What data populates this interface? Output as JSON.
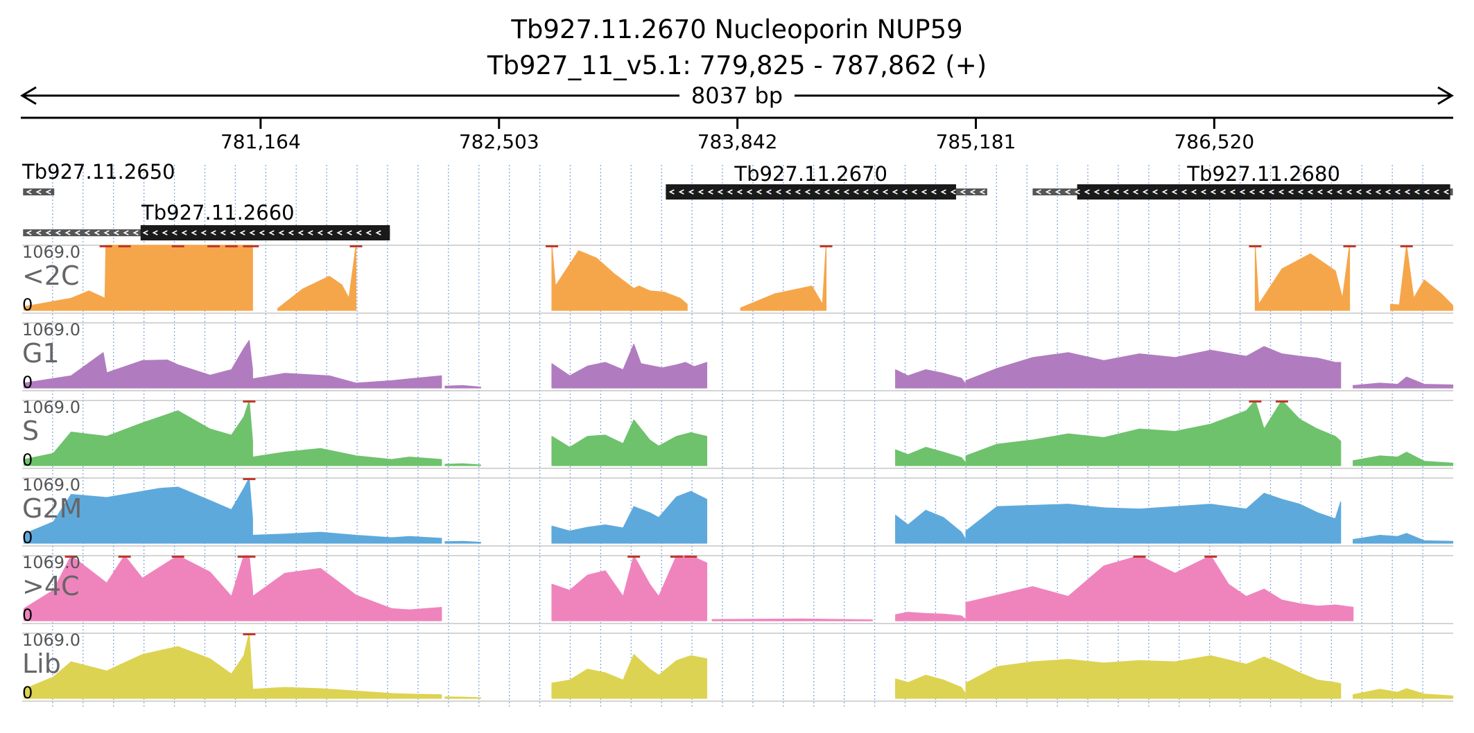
{
  "header": {
    "title": "Tb927.11.2670  Nucleoporin NUP59",
    "subtitle": "Tb927_11_v5.1: 779,825 - 787,862 (+)",
    "span_label": "8037 bp"
  },
  "colors": {
    "<2C": "#f5a64b",
    "G1": "#b07cbf",
    "S": "#6ec26c",
    "G2M": "#5ea9dc",
    ">4C": "#ef84bd",
    "Lib": "#ddd352",
    "gene": "#1a1a1a",
    "utr": "#555555",
    "grid": "#7fa8e0",
    "clip": "#c0392b"
  },
  "chart_data": {
    "type": "area",
    "title": "Tb927.11.2670  Nucleoporin NUP59",
    "subtitle": "Tb927_11_v5.1: 779,825 - 787,862 (+)",
    "xlim": [
      779825,
      787862
    ],
    "x_ticks": [
      781164,
      782503,
      783842,
      785181,
      786520
    ],
    "x_tick_labels": [
      "781,164",
      "782,503",
      "783,842",
      "785,181",
      "786,520"
    ],
    "genes": [
      {
        "name": "Tb927.11.2650",
        "strand": "-",
        "row": 0,
        "cds": null,
        "transcript": [
          779830,
          780005
        ]
      },
      {
        "name": "Tb927.11.2660",
        "strand": "-",
        "row": 1,
        "cds": [
          780490,
          781890
        ],
        "transcript": [
          779830,
          781890
        ]
      },
      {
        "name": "Tb927.11.2670",
        "strand": "-",
        "row": 0,
        "cds": [
          783440,
          785070
        ],
        "transcript": [
          783440,
          785245
        ]
      },
      {
        "name": "Tb927.11.2680",
        "strand": "-",
        "row": 0,
        "cds": [
          785750,
          787845
        ],
        "transcript": [
          785500,
          787860
        ]
      }
    ],
    "ymax_label": "1069.0",
    "ymin_label": "0",
    "ylim": [
      0,
      1069.0
    ],
    "series": [
      {
        "name": "<2C",
        "segments": [
          {
            "x": [
              779835,
              780100,
              780200,
              780290,
              780295,
              780400,
              780700,
              780900,
              781000,
              781100,
              781119
            ],
            "y": [
              60,
              200,
              320,
              200,
              1069,
              1069,
              1069,
              1069,
              1069,
              1069,
              1069
            ]
          },
          {
            "x": [
              781260,
              781400,
              781550,
              781620,
              781660,
              781700
            ],
            "y": [
              30,
              350,
              560,
              420,
              200,
              1069
            ]
          },
          {
            "x": [
              782800,
              782820,
              782950,
              783050,
              783150,
              783260,
              783290,
              783350,
              783430,
              783520,
              783560
            ],
            "y": [
              1069,
              400,
              980,
              860,
              600,
              360,
              400,
              320,
              300,
              200,
              100
            ]
          },
          {
            "x": [
              783860,
              784050,
              784260,
              784320,
              784340
            ],
            "y": [
              40,
              270,
              400,
              100,
              1069
            ]
          },
          {
            "x": [
              786750,
              786770,
              786900,
              787060,
              787200,
              787240,
              787280
            ],
            "y": [
              1069,
              100,
              680,
              930,
              650,
              200,
              1069
            ]
          },
          {
            "x": [
              787510,
              787560,
              787600,
              787640,
              787700,
              787800,
              787860
            ],
            "y": [
              100,
              90,
              1069,
              200,
              500,
              260,
              80
            ]
          }
        ]
      },
      {
        "name": "G1",
        "segments": [
          {
            "x": [
              779835,
              780100,
              780280,
              780300,
              780500,
              780640,
              780700,
              780880,
              781000,
              781070,
              781100,
              781119
            ],
            "y": [
              80,
              200,
              580,
              250,
              450,
              460,
              380,
              210,
              300,
              650,
              780,
              300
            ]
          },
          {
            "x": [
              781119,
              781300,
              781550,
              781700,
              781900,
              782000,
              782180
            ],
            "y": [
              150,
              240,
              200,
              80,
              120,
              150,
              200
            ]
          },
          {
            "x": [
              782200,
              782300,
              782400
            ],
            "y": [
              30,
              40,
              15
            ]
          },
          {
            "x": [
              782800,
              782900,
              783000,
              783100,
              783200,
              783260,
              783300,
              783420,
              783500,
              783550,
              783600,
              783670
            ],
            "y": [
              400,
              200,
              360,
              420,
              300,
              720,
              400,
              330,
              380,
              420,
              350,
              420
            ]
          },
          {
            "x": [
              784730,
              784800,
              784900,
              785000,
              785100,
              785120
            ],
            "y": [
              300,
              200,
              300,
              240,
              160,
              80
            ]
          },
          {
            "x": [
              785125,
              785300,
              785500,
              785700,
              785900,
              786100,
              786300,
              786500,
              786700,
              786800,
              786900,
              787000,
              787100,
              787200,
              787230
            ],
            "y": [
              120,
              320,
              500,
              580,
              450,
              560,
              500,
              620,
              520,
              680,
              560,
              520,
              490,
              420,
              420
            ]
          },
          {
            "x": [
              787300,
              787450,
              787550,
              787600,
              787700,
              787860
            ],
            "y": [
              40,
              80,
              60,
              180,
              60,
              50
            ]
          }
        ]
      },
      {
        "name": "S",
        "segments": [
          {
            "x": [
              779835,
              780000,
              780100,
              780300,
              780500,
              780600,
              780700,
              780880,
              781000,
              781070,
              781100,
              781119
            ],
            "y": [
              100,
              200,
              550,
              480,
              700,
              800,
              900,
              600,
              500,
              800,
              1069,
              400
            ]
          },
          {
            "x": [
              781119,
              781300,
              781500,
              781700,
              781900,
              782000,
              782180
            ],
            "y": [
              140,
              220,
              280,
              160,
              100,
              140,
              100
            ]
          },
          {
            "x": [
              782200,
              782300,
              782400
            ],
            "y": [
              20,
              30,
              10
            ]
          },
          {
            "x": [
              782800,
              782900,
              783000,
              783100,
              783200,
              783260,
              783350,
              783400,
              783500,
              783580,
              783670
            ],
            "y": [
              480,
              300,
              480,
              500,
              360,
              750,
              420,
              320,
              480,
              540,
              480
            ]
          },
          {
            "x": [
              784730,
              784800,
              784900,
              785000,
              785100,
              785120
            ],
            "y": [
              260,
              180,
              300,
              220,
              130,
              60
            ]
          },
          {
            "x": [
              785125,
              785300,
              785500,
              785700,
              785900,
              786100,
              786300,
              786500,
              786700,
              786750,
              786800,
              786900,
              787000,
              787100,
              787200,
              787230
            ],
            "y": [
              160,
              350,
              420,
              520,
              460,
              600,
              560,
              680,
              900,
              1069,
              600,
              1069,
              760,
              600,
              480,
              400
            ]
          },
          {
            "x": [
              787300,
              787450,
              787550,
              787600,
              787700,
              787860
            ],
            "y": [
              80,
              160,
              140,
              220,
              70,
              40
            ]
          }
        ]
      },
      {
        "name": "G2M",
        "segments": [
          {
            "x": [
              779835,
              780000,
              780100,
              780300,
              780500,
              780600,
              780700,
              780880,
              781000,
              781070,
              781100,
              781119
            ],
            "y": [
              150,
              350,
              800,
              750,
              850,
              900,
              920,
              700,
              550,
              900,
              1069,
              400
            ]
          },
          {
            "x": [
              781119,
              781300,
              781500,
              781700,
              781900,
              782000,
              782180
            ],
            "y": [
              130,
              150,
              180,
              130,
              90,
              110,
              80
            ]
          },
          {
            "x": [
              782200,
              782300,
              782400
            ],
            "y": [
              25,
              30,
              15
            ]
          },
          {
            "x": [
              782800,
              782900,
              783000,
              783100,
              783200,
              783260,
              783350,
              783400,
              783500,
              783580,
              783670
            ],
            "y": [
              280,
              200,
              260,
              300,
              250,
              600,
              500,
              420,
              760,
              850,
              720
            ]
          },
          {
            "x": [
              784730,
              784800,
              784900,
              785000,
              785100,
              785120
            ],
            "y": [
              460,
              300,
              540,
              420,
              180,
              80
            ]
          },
          {
            "x": [
              785125,
              785300,
              785500,
              785700,
              785900,
              786100,
              786300,
              786500,
              786700,
              786800,
              786900,
              787000,
              787100,
              787200,
              787230
            ],
            "y": [
              200,
              600,
              620,
              640,
              580,
              560,
              600,
              640,
              560,
              820,
              720,
              640,
              500,
              400,
              680
            ]
          },
          {
            "x": [
              787300,
              787450,
              787550,
              787600,
              787700,
              787860
            ],
            "y": [
              60,
              130,
              110,
              160,
              40,
              30
            ]
          }
        ]
      },
      {
        "name": ">4C",
        "segments": [
          {
            "x": [
              779835,
              780000,
              780100,
              780300,
              780400,
              780500,
              780700,
              780880,
              781000,
              781070,
              781100,
              781119
            ],
            "y": [
              200,
              500,
              1069,
              620,
              1069,
              700,
              1069,
              800,
              400,
              1069,
              1069,
              500
            ]
          },
          {
            "x": [
              781119,
              781300,
              781500,
              781700,
              781900,
              782000,
              782180
            ],
            "y": [
              400,
              780,
              860,
              420,
              200,
              180,
              220
            ]
          },
          {
            "x": [
              782800,
              782900,
              783000,
              783100,
              783200,
              783260,
              783350,
              783400,
              783500,
              783580,
              783670
            ],
            "y": [
              600,
              500,
              750,
              820,
              400,
              1069,
              600,
              400,
              1069,
              1069,
              950
            ]
          },
          {
            "x": [
              783700,
              784200,
              784600
            ],
            "y": [
              20,
              30,
              15
            ]
          },
          {
            "x": [
              784730,
              784800,
              784900,
              785000,
              785100,
              785120
            ],
            "y": [
              100,
              140,
              120,
              110,
              80,
              30
            ]
          },
          {
            "x": [
              785125,
              785300,
              785500,
              785700,
              785900,
              786100,
              786300,
              786500,
              786600,
              786700,
              786800,
              786900,
              787000,
              787100,
              787200,
              787300
            ],
            "y": [
              300,
              420,
              560,
              400,
              900,
              1069,
              780,
              1069,
              600,
              400,
              520,
              340,
              280,
              240,
              260,
              220
            ]
          }
        ]
      },
      {
        "name": "Lib",
        "segments": [
          {
            "x": [
              779835,
              780000,
              780100,
              780300,
              780500,
              780700,
              780880,
              781000,
              781070,
              781100,
              781119
            ],
            "y": [
              150,
              350,
              600,
              450,
              720,
              850,
              650,
              400,
              700,
              1069,
              200
            ]
          },
          {
            "x": [
              781119,
              781300,
              781500,
              781700,
              781900,
              782000,
              782180
            ],
            "y": [
              150,
              180,
              160,
              120,
              80,
              70,
              60
            ]
          },
          {
            "x": [
              782200,
              782300,
              782400
            ],
            "y": [
              25,
              20,
              10
            ]
          },
          {
            "x": [
              782800,
              782900,
              783000,
              783100,
              783200,
              783260,
              783350,
              783400,
              783500,
              783580,
              783670
            ],
            "y": [
              250,
              300,
              480,
              420,
              300,
              720,
              480,
              380,
              620,
              700,
              650
            ]
          },
          {
            "x": [
              784730,
              784800,
              784900,
              785000,
              785100,
              785120
            ],
            "y": [
              320,
              260,
              380,
              300,
              180,
              90
            ]
          },
          {
            "x": [
              785125,
              785300,
              785500,
              785700,
              785900,
              786100,
              786300,
              786500,
              786700,
              786800,
              786900,
              787000,
              787100,
              787200,
              787230
            ],
            "y": [
              250,
              520,
              600,
              640,
              580,
              620,
              600,
              700,
              560,
              680,
              560,
              420,
              300,
              260,
              240
            ]
          },
          {
            "x": [
              787300,
              787450,
              787550,
              787600,
              787700,
              787860
            ],
            "y": [
              60,
              150,
              100,
              160,
              70,
              40
            ]
          }
        ]
      }
    ],
    "grid": true,
    "legend": "none"
  }
}
